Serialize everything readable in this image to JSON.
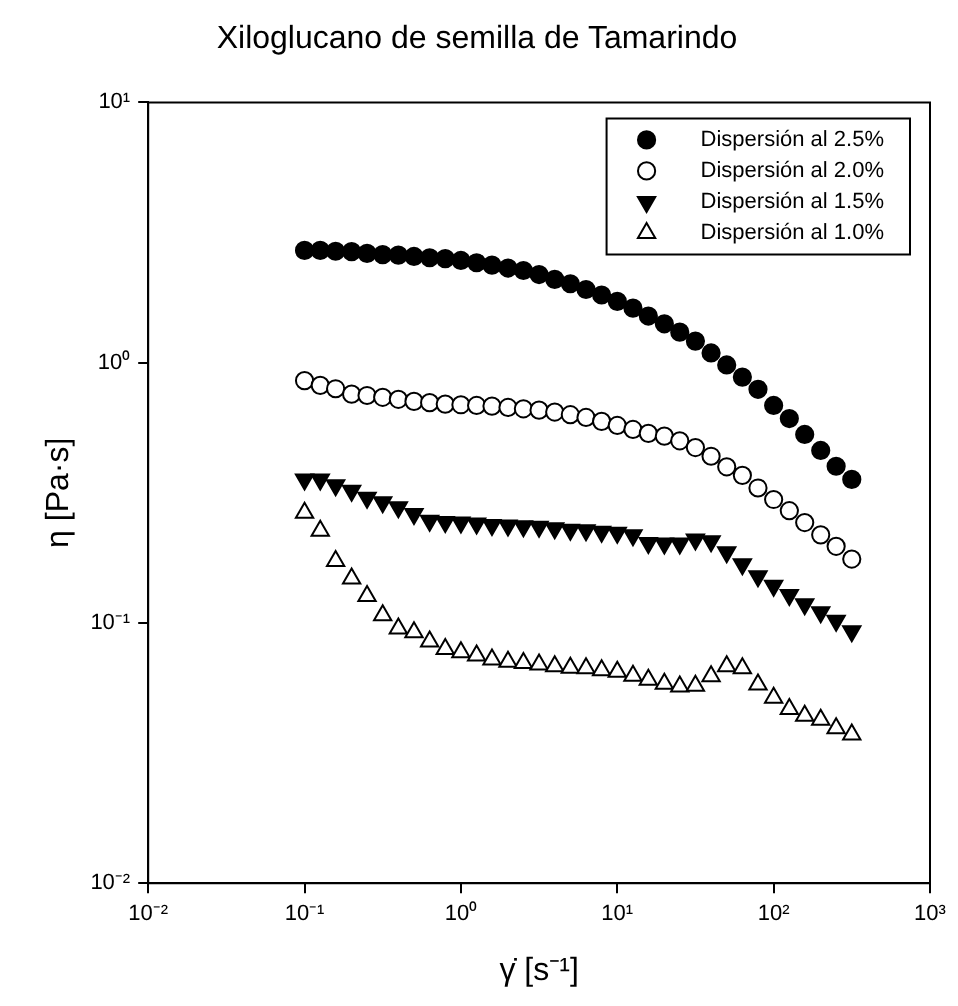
{
  "chart_data": {
    "type": "scatter",
    "title": "Xiloglucano de semilla de Tamarindo",
    "xlabel": "γ̇ [s⁻¹]",
    "ylabel": "η [Pa·s]",
    "log": "xy",
    "grid": false,
    "legend": "top right",
    "x": [
      0.1,
      0.126,
      0.158,
      0.2,
      0.251,
      0.316,
      0.398,
      0.501,
      0.631,
      0.794,
      1,
      1.26,
      1.58,
      2,
      2.51,
      3.16,
      3.98,
      5.01,
      6.31,
      7.94,
      10,
      12.6,
      15.8,
      20,
      25.1,
      31.6,
      39.8,
      50.1,
      63.1,
      79.4,
      100,
      126,
      158,
      200,
      251,
      316
    ],
    "xlim": [
      0.01,
      1000
    ],
    "ylim": [
      0.01,
      10
    ],
    "xticks": [
      {
        "value": 0.01,
        "label": "10⁻²"
      },
      {
        "value": 0.1,
        "label": "10⁻¹"
      },
      {
        "value": 1,
        "label": "10⁰"
      },
      {
        "value": 10,
        "label": "10¹"
      },
      {
        "value": 100,
        "label": "10²"
      },
      {
        "value": 1000,
        "label": "10³"
      }
    ],
    "yticks": [
      {
        "value": 0.01,
        "label": "10⁻²"
      },
      {
        "value": 0.1,
        "label": "10⁻¹"
      },
      {
        "value": 1,
        "label": "10⁰"
      },
      {
        "value": 10,
        "label": "10¹"
      }
    ],
    "series": [
      {
        "name": "Dispersión al 2.5%",
        "color": "#000000",
        "marker": "circle",
        "values": [
          2.7,
          2.7,
          2.68,
          2.67,
          2.63,
          2.6,
          2.59,
          2.56,
          2.53,
          2.51,
          2.47,
          2.42,
          2.37,
          2.31,
          2.26,
          2.18,
          2.09,
          2.01,
          1.91,
          1.82,
          1.72,
          1.62,
          1.51,
          1.41,
          1.31,
          1.21,
          1.09,
          0.98,
          0.88,
          0.79,
          0.685,
          0.61,
          0.53,
          0.46,
          0.4,
          0.356
        ]
      },
      {
        "name": "Dispersión al 2.0%",
        "color": "#000000",
        "marker": "circle-open",
        "values": [
          0.853,
          0.818,
          0.794,
          0.757,
          0.748,
          0.736,
          0.723,
          0.71,
          0.702,
          0.693,
          0.689,
          0.685,
          0.681,
          0.673,
          0.665,
          0.657,
          0.646,
          0.631,
          0.616,
          0.595,
          0.574,
          0.554,
          0.535,
          0.522,
          0.501,
          0.472,
          0.437,
          0.398,
          0.369,
          0.33,
          0.298,
          0.27,
          0.243,
          0.218,
          0.197,
          0.176
        ]
      },
      {
        "name": "Dispersión al 1.5%",
        "color": "#000000",
        "marker": "triangle-down",
        "values": [
          0.356,
          0.356,
          0.338,
          0.322,
          0.303,
          0.291,
          0.278,
          0.262,
          0.247,
          0.244,
          0.243,
          0.241,
          0.238,
          0.237,
          0.235,
          0.234,
          0.231,
          0.228,
          0.227,
          0.224,
          0.222,
          0.217,
          0.203,
          0.202,
          0.202,
          0.209,
          0.206,
          0.187,
          0.168,
          0.151,
          0.139,
          0.128,
          0.118,
          0.11,
          0.102,
          0.093
        ]
      },
      {
        "name": "Dispersión al 1.0%",
        "color": "#000000",
        "marker": "triangle-open",
        "values": [
          0.265,
          0.226,
          0.173,
          0.148,
          0.127,
          0.107,
          0.0953,
          0.092,
          0.0848,
          0.0794,
          0.0771,
          0.0749,
          0.0723,
          0.071,
          0.0702,
          0.0693,
          0.0681,
          0.0673,
          0.067,
          0.0658,
          0.065,
          0.0627,
          0.0605,
          0.0584,
          0.057,
          0.0574,
          0.0624,
          0.0681,
          0.067,
          0.058,
          0.0516,
          0.0467,
          0.044,
          0.0425,
          0.0394,
          0.0373
        ]
      }
    ]
  }
}
